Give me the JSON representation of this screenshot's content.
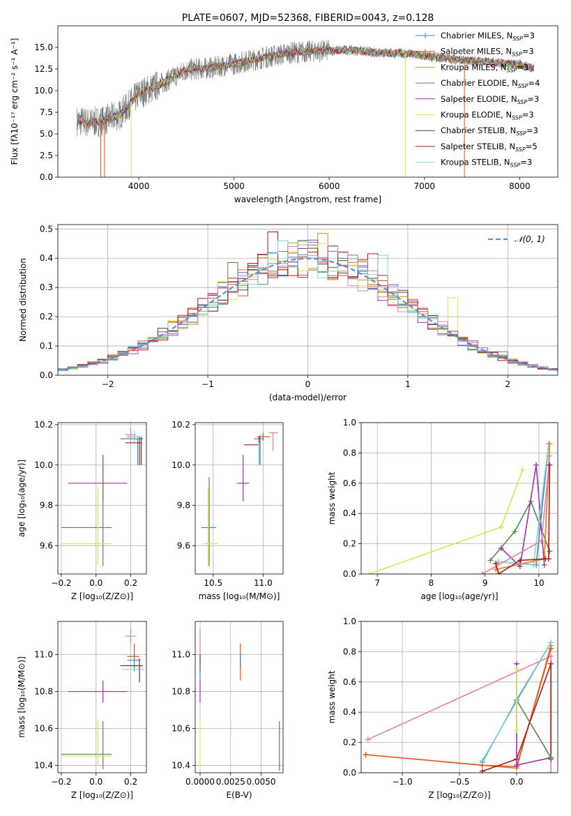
{
  "chart_data": [
    {
      "id": "spectrum",
      "type": "line",
      "title": "PLATE=0607, MJD=52368, FIBERID=0043, z=0.128",
      "xlabel": "wavelength [Angstrom, rest frame]",
      "ylabel": "Flux [fλ10⁻¹⁷ erg cm⁻² s⁻¹ A⁻¹]",
      "xlim": [
        3150,
        8400
      ],
      "ylim": [
        0,
        17.5
      ],
      "xticks": [
        4000,
        5000,
        6000,
        7000,
        8000
      ],
      "yticks": [
        0.0,
        2.5,
        5.0,
        7.5,
        10.0,
        12.5,
        15.0
      ],
      "grid": false,
      "legend_position": "right",
      "legend": [
        {
          "label": "Chabrier MILES, N",
          "sub": "SSP",
          "eq": "=3",
          "color": "#4682b4",
          "marker": "+"
        },
        {
          "label": "Salpeter MILES, N",
          "sub": "SSP",
          "eq": "=3",
          "color": "#e0541d",
          "marker": "+"
        },
        {
          "label": "Kroupa MILES, N",
          "sub": "SSP",
          "eq": "=3",
          "color": "#e08a1d",
          "marker": ""
        },
        {
          "label": "Chabrier ELODIE, N",
          "sub": "SSP",
          "eq": "=4",
          "color": "#4f8a4f",
          "marker": ""
        },
        {
          "label": "Salpeter ELODIE, N",
          "sub": "SSP",
          "eq": "=3",
          "color": "#9b30b0",
          "marker": ""
        },
        {
          "label": "Kroupa ELODIE, N",
          "sub": "SSP",
          "eq": "=3",
          "color": "#d4e85a",
          "marker": ""
        },
        {
          "label": "Chabrier STELIB, N",
          "sub": "SSP",
          "eq": "=3",
          "color": "#444444",
          "marker": ""
        },
        {
          "label": "Salpeter STELIB, N",
          "sub": "SSP",
          "eq": "=5",
          "color": "#b01818",
          "marker": ""
        },
        {
          "label": "Kroupa STELIB, N",
          "sub": "SSP",
          "eq": "=3",
          "color": "#7fd6e0",
          "marker": ""
        }
      ],
      "continuum": [
        [
          3350,
          6.5
        ],
        [
          3500,
          6.3
        ],
        [
          3650,
          6.6
        ],
        [
          3800,
          7.2
        ],
        [
          4000,
          9.6
        ],
        [
          4200,
          10.6
        ],
        [
          4500,
          12.4
        ],
        [
          4800,
          12.7
        ],
        [
          5000,
          13.1
        ],
        [
          5300,
          13.8
        ],
        [
          5600,
          14.4
        ],
        [
          5900,
          14.6
        ],
        [
          6200,
          14.7
        ],
        [
          6500,
          14.4
        ],
        [
          6800,
          14.3
        ],
        [
          7100,
          13.9
        ],
        [
          7400,
          13.5
        ],
        [
          7700,
          13.3
        ],
        [
          8000,
          13.0
        ],
        [
          8150,
          12.6
        ]
      ]
    },
    {
      "id": "residuals",
      "type": "step",
      "xlabel": "(data-model)/error",
      "ylabel": "Normed distribution",
      "xlim": [
        -2.5,
        2.5
      ],
      "ylim": [
        0,
        0.515
      ],
      "xticks": [
        -2,
        -1,
        0,
        1,
        2
      ],
      "yticks": [
        0.0,
        0.1,
        0.2,
        0.3,
        0.4,
        0.5
      ],
      "grid": true,
      "bin_width": 0.1,
      "series_colors": [
        "#4682b4",
        "#e0541d",
        "#e08a1d",
        "#4f8a4f",
        "#9b30b0",
        "#d4e85a",
        "#444444",
        "#b01818",
        "#7fd6e0",
        "#e07fb0"
      ],
      "highlights": [
        [
          -0.35,
          0.49
        ],
        [
          -0.25,
          0.46
        ],
        [
          0.15,
          0.485
        ],
        [
          0.05,
          0.445
        ],
        [
          0.65,
          0.415
        ],
        [
          -0.75,
          0.385
        ],
        [
          0.75,
          0.41
        ],
        [
          1.4,
          0.295
        ],
        [
          1.45,
          0.265
        ],
        [
          1.95,
          0.08
        ]
      ],
      "legend": [
        {
          "label": "𝒩(0, 1)",
          "color": "#5b8fd0",
          "style": "dashed"
        }
      ],
      "legend_position": "top-right"
    },
    {
      "id": "age-vs-Z",
      "type": "scatter",
      "xlabel": "Z [log₁₀(Z/Z⊙)]",
      "ylabel": "age  [log₁₀(age/yr)]",
      "xlim": [
        -0.22,
        0.29
      ],
      "ylim": [
        9.46,
        10.21
      ],
      "xticks": [
        -0.2,
        0.0,
        0.2
      ],
      "yticks": [
        9.6,
        9.8,
        10.0,
        10.2
      ],
      "grid": true,
      "points": [
        {
          "x": 0.2,
          "y": 10.15,
          "xerr": [
            0.03,
            0.03
          ],
          "yerr": [
            0.04,
            0.03
          ],
          "color": "#e07fb0"
        },
        {
          "x": 0.22,
          "y": 10.14,
          "xerr": [
            0.04,
            0.03
          ],
          "yerr": [
            0.02,
            0.03
          ],
          "color": "#e0541d"
        },
        {
          "x": 0.22,
          "y": 10.14,
          "xerr": [
            0.03,
            0.03
          ],
          "yerr": [
            0.03,
            0.03
          ],
          "color": "#7fd6e0"
        },
        {
          "x": 0.24,
          "y": 10.13,
          "xerr": [
            0.1,
            0.03
          ],
          "yerr": [
            0.13,
            0.0
          ],
          "color": "#4682b4"
        },
        {
          "x": 0.26,
          "y": 10.11,
          "xerr": [
            0.09,
            0.0
          ],
          "yerr": [
            0.11,
            0.03
          ],
          "color": "#b01818"
        },
        {
          "x": 0.25,
          "y": 10.12,
          "xerr": [
            0.0,
            0.0
          ],
          "yerr": [
            0.12,
            0.02
          ],
          "color": "#444444"
        },
        {
          "x": 0.04,
          "y": 9.91,
          "xerr": [
            0.2,
            0.14
          ],
          "yerr": [
            0.09,
            0.14
          ],
          "color": "#9b30b0"
        },
        {
          "x": 0.04,
          "y": 9.69,
          "xerr": [
            0.24,
            0.05
          ],
          "yerr": [
            0.19,
            0.25
          ],
          "color": "#4f8a4f"
        },
        {
          "x": 0.01,
          "y": 9.61,
          "xerr": [
            0.21,
            0.08
          ],
          "yerr": [
            0.11,
            0.28
          ],
          "color": "#d4e85a"
        }
      ]
    },
    {
      "id": "age-vs-mass",
      "type": "scatter",
      "xlabel": "mass [log₁₀(M/M⊙)]",
      "ylabel": "",
      "xlim": [
        10.32,
        11.2
      ],
      "ylim": [
        9.46,
        10.21
      ],
      "xticks": [
        10.5,
        11.0
      ],
      "yticks": [
        9.6,
        9.8,
        10.0,
        10.2
      ],
      "grid": true,
      "points": [
        {
          "x": 11.1,
          "y": 10.16,
          "xerr": [
            0.04,
            0.05
          ],
          "yerr": [
            0.09,
            0.0
          ],
          "color": "#e07fb0"
        },
        {
          "x": 11.0,
          "y": 10.14,
          "xerr": [
            0.06,
            0.07
          ],
          "yerr": [
            0.02,
            0.02
          ],
          "color": "#e0541d"
        },
        {
          "x": 10.97,
          "y": 10.13,
          "xerr": [
            0.06,
            0.04
          ],
          "yerr": [
            0.13,
            0.02
          ],
          "color": "#4682b4"
        },
        {
          "x": 10.96,
          "y": 10.1,
          "xerr": [
            0.15,
            0.0
          ],
          "yerr": [
            0.09,
            0.04
          ],
          "color": "#b01818"
        },
        {
          "x": 10.96,
          "y": 10.11,
          "xerr": [
            0.0,
            0.0
          ],
          "yerr": [
            0.11,
            0.0
          ],
          "color": "#7fd6e0"
        },
        {
          "x": 10.8,
          "y": 9.91,
          "xerr": [
            0.06,
            0.06
          ],
          "yerr": [
            0.09,
            0.14
          ],
          "color": "#9b30b0"
        },
        {
          "x": 10.46,
          "y": 9.69,
          "xerr": [
            0.08,
            0.07
          ],
          "yerr": [
            0.19,
            0.25
          ],
          "color": "#4f8a4f"
        },
        {
          "x": 10.45,
          "y": 9.61,
          "xerr": [
            0.05,
            0.1
          ],
          "yerr": [
            0.11,
            0.28
          ],
          "color": "#d4e85a"
        }
      ]
    },
    {
      "id": "massweight-vs-age",
      "type": "line",
      "xlabel": "age  [log₁₀(age/yr)]",
      "ylabel": "mass weight",
      "xlim": [
        6.7,
        10.35
      ],
      "ylim": [
        0,
        1.0
      ],
      "xticks": [
        7,
        8,
        9,
        10
      ],
      "yticks": [
        0.0,
        0.2,
        0.4,
        0.6,
        0.8,
        1.0
      ],
      "grid": true,
      "series": [
        {
          "color": "#d4e85a",
          "x": [
            6.85,
            9.3,
            9.7
          ],
          "y": [
            0.0,
            0.31,
            0.69
          ]
        },
        {
          "color": "#4f8a4f",
          "x": [
            9.1,
            9.55,
            9.85,
            10.2
          ],
          "y": [
            0.09,
            0.28,
            0.48,
            0.15
          ]
        },
        {
          "color": "#9b30b0",
          "x": [
            9.3,
            9.65,
            9.95,
            10.1
          ],
          "y": [
            0.17,
            0.05,
            0.72,
            0.06
          ]
        },
        {
          "color": "#4682b4",
          "x": [
            9.25,
            9.95,
            10.18
          ],
          "y": [
            0.08,
            0.06,
            0.86
          ]
        },
        {
          "color": "#7fd6e0",
          "x": [
            9.25,
            9.9,
            10.18
          ],
          "y": [
            0.08,
            0.06,
            0.86
          ]
        },
        {
          "color": "#e0541d",
          "x": [
            9.2,
            10.1,
            10.2
          ],
          "y": [
            0.03,
            0.1,
            0.86
          ]
        },
        {
          "color": "#e08a1d",
          "x": [
            9.2,
            10.1,
            10.2
          ],
          "y": [
            0.03,
            0.1,
            0.86
          ]
        },
        {
          "color": "#e07fb0",
          "x": [
            8.95,
            10.05,
            10.2
          ],
          "y": [
            0.0,
            0.22,
            0.78
          ]
        },
        {
          "color": "#b01818",
          "x": [
            9.2,
            9.25,
            9.65,
            10.12,
            10.18,
            10.2
          ],
          "y": [
            0.07,
            0.0,
            0.09,
            0.1,
            0.1,
            0.72
          ]
        }
      ]
    },
    {
      "id": "mass-vs-Z",
      "type": "scatter",
      "xlabel": "Z [log₁₀(Z/Z⊙)]",
      "ylabel": "mass [log₁₀(M/M⊙)]",
      "xlim": [
        -0.22,
        0.29
      ],
      "ylim": [
        10.36,
        11.18
      ],
      "xticks": [
        -0.2,
        0.0,
        0.2
      ],
      "yticks": [
        10.4,
        10.6,
        10.8,
        11.0
      ],
      "grid": true,
      "points": [
        {
          "x": 0.2,
          "y": 11.1,
          "xerr": [
            0.03,
            0.03
          ],
          "yerr": [
            0.05,
            0.04
          ],
          "color": "#e07fb0"
        },
        {
          "x": 0.22,
          "y": 10.99,
          "xerr": [
            0.04,
            0.03
          ],
          "yerr": [
            0.06,
            0.07
          ],
          "color": "#e0541d"
        },
        {
          "x": 0.22,
          "y": 10.97,
          "xerr": [
            0.04,
            0.03
          ],
          "yerr": [
            0.06,
            0.04
          ],
          "color": "#4682b4"
        },
        {
          "x": 0.24,
          "y": 10.94,
          "xerr": [
            0.1,
            0.03
          ],
          "yerr": [
            0.0,
            0.0
          ],
          "color": "#444444"
        },
        {
          "x": 0.25,
          "y": 10.92,
          "xerr": [
            0.1,
            0.03
          ],
          "yerr": [
            0.0,
            0.0
          ],
          "color": "#7fd6e0"
        },
        {
          "x": 0.25,
          "y": 10.95,
          "xerr": [
            0.0,
            0.0
          ],
          "yerr": [
            0.1,
            0.03
          ],
          "color": "#b01818"
        },
        {
          "x": 0.04,
          "y": 10.8,
          "xerr": [
            0.2,
            0.14
          ],
          "yerr": [
            0.06,
            0.06
          ],
          "color": "#9b30b0"
        },
        {
          "x": 0.04,
          "y": 10.46,
          "xerr": [
            0.24,
            0.05
          ],
          "yerr": [
            0.08,
            0.18
          ],
          "color": "#4f8a4f"
        },
        {
          "x": 0.01,
          "y": 10.45,
          "xerr": [
            0.21,
            0.08
          ],
          "yerr": [
            0.05,
            0.2
          ],
          "color": "#d4e85a"
        }
      ]
    },
    {
      "id": "mass-vs-ebv",
      "type": "scatter",
      "xlabel": "E(B-V)",
      "ylabel": "",
      "xlim": [
        -0.0004,
        0.0068
      ],
      "ylim": [
        10.36,
        11.18
      ],
      "xticks": [
        0.0,
        0.0025,
        0.005
      ],
      "xticklabels": [
        "0.0000",
        "0.0025",
        "0.0050"
      ],
      "yticks": [
        10.4,
        10.6,
        10.8,
        11.0
      ],
      "grid": true,
      "points": [
        {
          "x": 0.0,
          "y": 11.02,
          "xerr": [
            0,
            0
          ],
          "yerr": [
            0.1,
            0.12
          ],
          "color": "#e07fb0"
        },
        {
          "x": 0.0,
          "y": 10.95,
          "xerr": [
            0,
            0
          ],
          "yerr": [
            0.05,
            0.05
          ],
          "color": "#444444"
        },
        {
          "x": 0.0,
          "y": 10.9,
          "xerr": [
            0,
            0
          ],
          "yerr": [
            0.05,
            0.05
          ],
          "color": "#4682b4"
        },
        {
          "x": 0.0,
          "y": 10.8,
          "xerr": [
            0,
            0
          ],
          "yerr": [
            0.06,
            0.06
          ],
          "color": "#9b30b0"
        },
        {
          "x": 0.0,
          "y": 10.5,
          "xerr": [
            0,
            0
          ],
          "yerr": [
            0.12,
            0.15
          ],
          "color": "#d4e85a"
        },
        {
          "x": 0.0033,
          "y": 10.95,
          "xerr": [
            0,
            0
          ],
          "yerr": [
            0.09,
            0.11
          ],
          "color": "#e0541d"
        },
        {
          "x": 0.0033,
          "y": 10.97,
          "xerr": [
            0,
            0
          ],
          "yerr": [
            0.04,
            0.04
          ],
          "color": "#4682b4"
        },
        {
          "x": 0.0065,
          "y": 10.5,
          "xerr": [
            0,
            0
          ],
          "yerr": [
            0.13,
            0.14
          ],
          "color": "#4f8a4f"
        }
      ]
    },
    {
      "id": "massweight-vs-Z",
      "type": "line",
      "xlabel": "Z [log₁₀(Z/Z⊙)]",
      "ylabel": "mass weight",
      "xlim": [
        -1.36,
        0.36
      ],
      "ylim": [
        0,
        1.0
      ],
      "xticks": [
        -1.0,
        -0.5,
        0.0
      ],
      "yticks": [
        0.0,
        0.2,
        0.4,
        0.6,
        0.8,
        1.0
      ],
      "grid": true,
      "series": [
        {
          "color": "#e07fb0",
          "x": [
            -1.3,
            0.3,
            0.3
          ],
          "y": [
            0.22,
            0.77,
            0.0
          ]
        },
        {
          "color": "#e08a1d",
          "x": [
            -1.32,
            -0.3,
            0.0,
            0.3
          ],
          "y": [
            0.12,
            0.05,
            0.03,
            0.84
          ]
        },
        {
          "color": "#e0541d",
          "x": [
            -1.32,
            -0.3,
            0.0,
            0.3
          ],
          "y": [
            0.12,
            0.05,
            0.04,
            0.82
          ]
        },
        {
          "color": "#b01818",
          "x": [
            -0.3,
            0.0,
            0.3,
            0.3
          ],
          "y": [
            0.01,
            0.09,
            0.72,
            0.09
          ]
        },
        {
          "color": "#9b30b0",
          "x": [
            0.0,
            0.0,
            0.3
          ],
          "y": [
            0.72,
            0.05,
            0.1
          ]
        },
        {
          "color": "#4f8a4f",
          "x": [
            0.0,
            0.3
          ],
          "y": [
            0.48,
            0.1
          ]
        },
        {
          "color": "#4682b4",
          "x": [
            -0.3,
            0.0,
            0.3
          ],
          "y": [
            0.07,
            0.48,
            0.86
          ]
        },
        {
          "color": "#7fd6e0",
          "x": [
            -0.3,
            0.0,
            0.3
          ],
          "y": [
            0.08,
            0.47,
            0.86
          ]
        },
        {
          "color": "#d4e85a",
          "x": [
            0.0,
            0.0
          ],
          "y": [
            0.69,
            0.28
          ]
        }
      ]
    }
  ]
}
